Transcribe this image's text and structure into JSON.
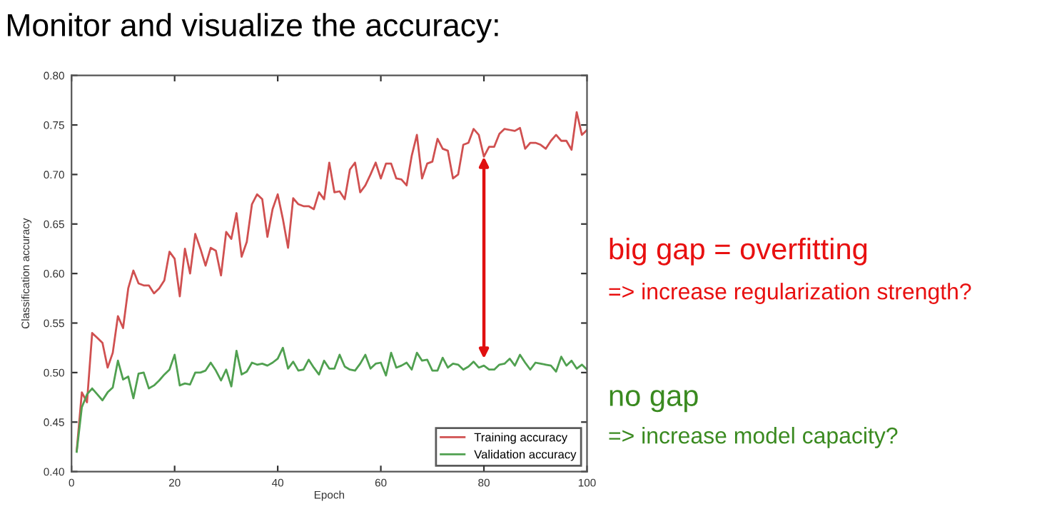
{
  "chart_data": {
    "type": "line",
    "title": "Monitor and visualize the accuracy:",
    "xlabel": "Epoch",
    "ylabel": "Classification accuracy",
    "x": [
      1,
      2,
      3,
      4,
      5,
      6,
      7,
      8,
      9,
      10,
      11,
      12,
      13,
      14,
      15,
      16,
      17,
      18,
      19,
      20,
      21,
      22,
      23,
      24,
      25,
      26,
      27,
      28,
      29,
      30,
      31,
      32,
      33,
      34,
      35,
      36,
      37,
      38,
      39,
      40,
      41,
      42,
      43,
      44,
      45,
      46,
      47,
      48,
      49,
      50,
      51,
      52,
      53,
      54,
      55,
      56,
      57,
      58,
      59,
      60,
      61,
      62,
      63,
      64,
      65,
      66,
      67,
      68,
      69,
      70,
      71,
      72,
      73,
      74,
      75,
      76,
      77,
      78,
      79,
      80,
      81,
      82,
      83,
      84,
      85,
      86,
      87,
      88,
      89,
      90,
      91,
      92,
      93,
      94,
      95,
      96,
      97,
      98,
      99,
      100
    ],
    "series": [
      {
        "name": "Training accuracy",
        "color": "#d05050",
        "values": [
          0.421,
          0.48,
          0.47,
          0.54,
          0.535,
          0.53,
          0.505,
          0.52,
          0.557,
          0.545,
          0.585,
          0.603,
          0.59,
          0.588,
          0.588,
          0.58,
          0.585,
          0.593,
          0.622,
          0.615,
          0.577,
          0.625,
          0.6,
          0.64,
          0.625,
          0.608,
          0.626,
          0.623,
          0.598,
          0.642,
          0.635,
          0.661,
          0.617,
          0.632,
          0.67,
          0.68,
          0.675,
          0.637,
          0.665,
          0.68,
          0.655,
          0.626,
          0.676,
          0.67,
          0.668,
          0.668,
          0.665,
          0.682,
          0.675,
          0.712,
          0.682,
          0.683,
          0.675,
          0.705,
          0.712,
          0.682,
          0.689,
          0.7,
          0.712,
          0.696,
          0.711,
          0.711,
          0.696,
          0.695,
          0.689,
          0.719,
          0.74,
          0.696,
          0.711,
          0.713,
          0.736,
          0.726,
          0.724,
          0.696,
          0.7,
          0.73,
          0.732,
          0.746,
          0.74,
          0.718,
          0.728,
          0.728,
          0.741,
          0.746,
          0.745,
          0.744,
          0.747,
          0.726,
          0.732,
          0.732,
          0.73,
          0.726,
          0.734,
          0.74,
          0.734,
          0.734,
          0.725,
          0.763,
          0.74,
          0.745
        ]
      },
      {
        "name": "Validation accuracy",
        "color": "#50a050",
        "values": [
          0.42,
          0.465,
          0.478,
          0.484,
          0.478,
          0.472,
          0.48,
          0.485,
          0.512,
          0.493,
          0.496,
          0.474,
          0.499,
          0.5,
          0.484,
          0.487,
          0.492,
          0.498,
          0.503,
          0.518,
          0.487,
          0.489,
          0.488,
          0.5,
          0.5,
          0.502,
          0.51,
          0.502,
          0.492,
          0.503,
          0.486,
          0.522,
          0.498,
          0.501,
          0.51,
          0.508,
          0.509,
          0.507,
          0.51,
          0.514,
          0.525,
          0.504,
          0.511,
          0.502,
          0.503,
          0.513,
          0.505,
          0.498,
          0.512,
          0.504,
          0.504,
          0.518,
          0.506,
          0.503,
          0.502,
          0.509,
          0.518,
          0.504,
          0.509,
          0.51,
          0.497,
          0.52,
          0.505,
          0.507,
          0.51,
          0.503,
          0.52,
          0.512,
          0.513,
          0.502,
          0.502,
          0.515,
          0.505,
          0.509,
          0.508,
          0.503,
          0.506,
          0.511,
          0.505,
          0.507,
          0.503,
          0.503,
          0.508,
          0.509,
          0.514,
          0.507,
          0.518,
          0.51,
          0.503,
          0.51,
          0.509,
          0.508,
          0.507,
          0.501,
          0.516,
          0.507,
          0.512,
          0.504,
          0.508,
          0.503
        ]
      }
    ],
    "xlim": [
      0,
      100
    ],
    "xticks": [
      0,
      20,
      40,
      60,
      80,
      100
    ],
    "ylim": [
      0.4,
      0.8
    ],
    "yticks": [
      {
        "value": 0.4,
        "label": "0.40"
      },
      {
        "value": 0.45,
        "label": "0.45"
      },
      {
        "value": 0.5,
        "label": "0.50"
      },
      {
        "value": 0.55,
        "label": "0.55"
      },
      {
        "value": 0.6,
        "label": "0.60"
      },
      {
        "value": 0.65,
        "label": "0.65"
      },
      {
        "value": 0.7,
        "label": "0.70"
      },
      {
        "value": 0.75,
        "label": "0.75"
      },
      {
        "value": 0.8,
        "label": "0.80"
      }
    ],
    "grid": false,
    "legend": "bottom right",
    "marker": "none",
    "line_style": "solid",
    "annotations": [
      "big gap = overfitting",
      "=> increase regularization strength?",
      "no gap",
      "=> increase model capacity?"
    ]
  }
}
